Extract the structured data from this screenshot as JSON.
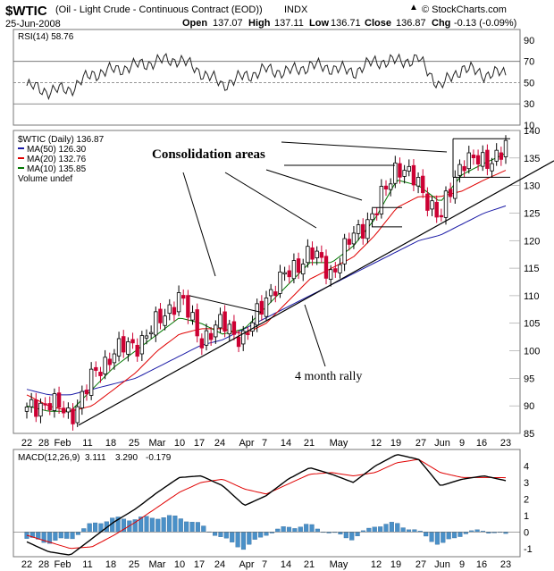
{
  "header": {
    "symbol": "$WTIC",
    "description": "(Oil - Light Crude - Continuous Contract (EOD))",
    "exchange": "INDX",
    "date": "25-Jun-2008",
    "open_label": "Open",
    "open": "137.07",
    "high_label": "High",
    "high": "137.11",
    "low_label": "Low",
    "low": "136.71",
    "close_label": "Close",
    "close": "136.87",
    "chg_label": "Chg",
    "chg": "-0.13 (-0.09%)",
    "brand": "© StockCharts.com",
    "brand_icon": "stockcharts-logo-icon"
  },
  "colors": {
    "candle_up": "#000000",
    "candle_down": "#cc0033",
    "ma50": "#1a1aa6",
    "ma20": "#e00000",
    "ma10": "#007700",
    "macd_line": "#000000",
    "signal_line": "#e00000",
    "histogram": "#4a90c8"
  },
  "chart_data": [
    {
      "type": "line",
      "panel": "rsi",
      "legend": "RSI(14) 58.76",
      "ylim": [
        10,
        100
      ],
      "yticks": [
        10,
        30,
        50,
        70,
        90
      ],
      "reference_lines": [
        30,
        50,
        70
      ],
      "x": [
        "Jan 22",
        "Jan 28",
        "Feb 4",
        "Feb 11",
        "Feb 18",
        "Feb 25",
        "Mar 3",
        "Mar 10",
        "Mar 17",
        "Mar 24",
        "Mar 31",
        "Apr 7",
        "Apr 14",
        "Apr 21",
        "Apr 28",
        "May 5",
        "May 12",
        "May 19",
        "May 26",
        "Jun 2",
        "Jun 9",
        "Jun 16",
        "Jun 23"
      ],
      "values": [
        47,
        42,
        44,
        58,
        62,
        66,
        70,
        72,
        60,
        48,
        56,
        62,
        60,
        66,
        64,
        60,
        70,
        70,
        72,
        46,
        64,
        58,
        58.76
      ]
    },
    {
      "type": "candlestick",
      "panel": "price",
      "legend": [
        "$WTIC (Daily) 136.87",
        "MA(50) 126.30",
        "MA(20) 132.76",
        "MA(10) 135.85",
        "Volume undef"
      ],
      "ylim": [
        85,
        140
      ],
      "yticks": [
        85,
        90,
        95,
        100,
        105,
        110,
        115,
        120,
        125,
        130,
        135,
        140
      ],
      "xtick_labels": [
        "22",
        "28",
        "Feb",
        "11",
        "18",
        "25",
        "Mar",
        "10",
        "17",
        "24",
        "Apr",
        "7",
        "14",
        "21",
        "May",
        "12",
        "19",
        "27",
        "Jun",
        "9",
        "16",
        "23"
      ],
      "weekly_closes": {
        "x": [
          "Jan 22",
          "Jan 28",
          "Feb 4",
          "Feb 11",
          "Feb 18",
          "Feb 25",
          "Mar 3",
          "Mar 10",
          "Mar 17",
          "Mar 24",
          "Mar 31",
          "Apr 7",
          "Apr 14",
          "Apr 21",
          "Apr 28",
          "May 5",
          "May 12",
          "May 19",
          "May 26",
          "Jun 2",
          "Jun 9",
          "Jun 16",
          "Jun 23"
        ],
        "close": [
          89,
          91,
          88,
          95,
          100,
          101,
          105,
          110,
          102,
          105,
          102,
          110,
          114,
          118,
          114,
          121,
          125,
          134,
          130,
          124,
          135,
          134,
          136.87
        ]
      },
      "moving_averages": {
        "ma50": [
          93,
          92,
          92,
          93,
          94,
          95,
          97,
          99,
          101,
          102,
          104,
          106,
          108,
          110,
          112,
          114,
          116,
          118,
          120,
          121,
          123,
          125,
          126.3
        ],
        "ma20": [
          92,
          90,
          89,
          90,
          93,
          96,
          100,
          103,
          104,
          104,
          103,
          105,
          109,
          113,
          115,
          117,
          121,
          126,
          128,
          128,
          129,
          131,
          132.76
        ],
        "ma10": [
          90,
          89,
          89,
          93,
          97,
          100,
          103,
          106,
          105,
          103,
          104,
          108,
          112,
          116,
          116,
          119,
          124,
          131,
          130,
          127,
          132,
          134,
          135.85
        ]
      },
      "annotations": [
        "Consolidation areas",
        "4 month rally"
      ]
    },
    {
      "type": "line",
      "panel": "macd",
      "legend": [
        "MACD(12,26,9)",
        "3.111",
        "3.290",
        "-0.179"
      ],
      "ylim": [
        -1.5,
        5
      ],
      "yticks": [
        -1,
        0,
        1,
        2,
        3,
        4
      ],
      "xtick_labels": [
        "22",
        "28",
        "Feb",
        "11",
        "18",
        "25",
        "Mar",
        "10",
        "17",
        "24",
        "Apr",
        "7",
        "14",
        "21",
        "May",
        "12",
        "19",
        "27",
        "Jun",
        "9",
        "16",
        "23"
      ],
      "x": [
        "Jan 22",
        "Jan 28",
        "Feb 4",
        "Feb 11",
        "Feb 18",
        "Feb 25",
        "Mar 3",
        "Mar 10",
        "Mar 17",
        "Mar 24",
        "Mar 31",
        "Apr 7",
        "Apr 14",
        "Apr 21",
        "Apr 28",
        "May 5",
        "May 12",
        "May 19",
        "May 26",
        "Jun 2",
        "Jun 9",
        "Jun 16",
        "Jun 23"
      ],
      "macd": [
        -0.6,
        -1.2,
        -1.4,
        -0.4,
        0.6,
        1.4,
        2.4,
        3.3,
        3.4,
        2.8,
        1.6,
        2.2,
        3.2,
        3.9,
        3.5,
        3.0,
        4.0,
        4.7,
        4.4,
        2.8,
        3.2,
        3.4,
        3.111
      ],
      "signal": [
        -0.2,
        -0.6,
        -1.0,
        -0.9,
        -0.2,
        0.6,
        1.5,
        2.4,
        3.0,
        3.2,
        2.6,
        2.3,
        2.9,
        3.5,
        3.6,
        3.4,
        3.6,
        4.2,
        4.4,
        3.6,
        3.3,
        3.3,
        3.29
      ],
      "histogram": [
        -0.4,
        -0.6,
        -0.4,
        0.5,
        0.8,
        0.8,
        0.9,
        0.9,
        0.4,
        -0.4,
        -1.0,
        -0.1,
        0.3,
        0.4,
        -0.1,
        -0.4,
        0.4,
        0.5,
        0.0,
        -0.8,
        -0.1,
        0.1,
        -0.179
      ]
    }
  ]
}
